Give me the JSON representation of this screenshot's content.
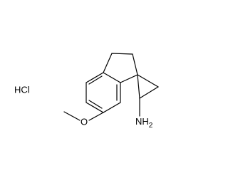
{
  "salt": "HCl",
  "labels": {
    "oxygen": "O",
    "amine": {
      "text": "NH",
      "subscript": "2"
    }
  }
}
